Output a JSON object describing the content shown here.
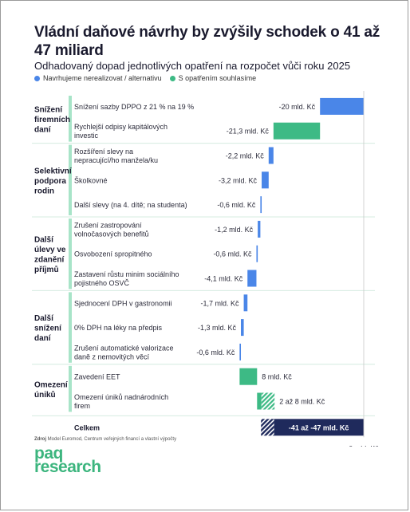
{
  "title": "Vládní daňové návrhy by zvýšily schodek o 41 až 47 miliard",
  "subtitle": "Odhadovaný dopad jednotlivých opatření na rozpočet vůči roku 2025",
  "legend": [
    {
      "label": "Navrhujeme nerealizovat / alternativu",
      "color": "#4a86e8"
    },
    {
      "label": "S opatřením souhlasíme",
      "color": "#3dba85"
    }
  ],
  "source_label": "Zdroj",
  "source_text": "Model Euromod, Centrum veřejných financí a vlastní výpočty",
  "logo_line1": "paq",
  "logo_line2": "research",
  "chart_data": {
    "type": "bar",
    "orientation": "horizontal-waterfall",
    "x_axis_label": "0 mld. Kč",
    "groups": [
      {
        "name": "Snížení firemních daní",
        "lines": [
          "Snížení",
          "firemních",
          "daní"
        ]
      },
      {
        "name": "Selektivní podpora rodin",
        "lines": [
          "Selektivní",
          "podpora",
          "rodin"
        ]
      },
      {
        "name": "Další úlevy ve zdanění příjmů",
        "lines": [
          "Další",
          "úlevy ve",
          "zdanění",
          "příjmů"
        ]
      },
      {
        "name": "Další snížení daní",
        "lines": [
          "Další",
          "snížení",
          "daní"
        ]
      },
      {
        "name": "Omezení úniků",
        "lines": [
          "Omezení",
          "úniků"
        ]
      }
    ],
    "items": [
      {
        "group": 0,
        "lines": [
          "Snížení sazby DPPO z 21 % na 19 %"
        ],
        "value": -20,
        "value_label": "-20 mld. Kč",
        "color": "blue"
      },
      {
        "group": 0,
        "lines": [
          "Rychlejší odpisy kapitálových",
          "investic"
        ],
        "value": -21.3,
        "value_label": "-21,3 mld. Kč",
        "color": "green"
      },
      {
        "group": 1,
        "lines": [
          "Rozšíření slevy na",
          "nepracující/ho manžela/ku"
        ],
        "value": -2.2,
        "value_label": "-2,2 mld. Kč",
        "color": "blue"
      },
      {
        "group": 1,
        "lines": [
          "Školkovné"
        ],
        "value": -3.2,
        "value_label": "-3,2 mld. Kč",
        "color": "blue"
      },
      {
        "group": 1,
        "lines": [
          "Další slevy (na 4. dítě; na studenta)"
        ],
        "value": -0.6,
        "value_label": "-0,6 mld. Kč",
        "color": "blue"
      },
      {
        "group": 2,
        "lines": [
          "Zrušení zastropování",
          "volnočasových benefitů"
        ],
        "value": -1.2,
        "value_label": "-1,2 mld. Kč",
        "color": "blue"
      },
      {
        "group": 2,
        "lines": [
          "Osvobození spropitného"
        ],
        "value": -0.6,
        "value_label": "-0,6 mld. Kč",
        "color": "blue"
      },
      {
        "group": 2,
        "lines": [
          "Zastavení růstu minim sociálního",
          "pojistného OSVČ"
        ],
        "value": -4.1,
        "value_label": "-4,1 mld. Kč",
        "color": "blue"
      },
      {
        "group": 3,
        "lines": [
          "Sjednocení DPH v gastronomii"
        ],
        "value": -1.7,
        "value_label": "-1,7 mld. Kč",
        "color": "blue"
      },
      {
        "group": 3,
        "lines": [
          "0% DPH na léky na předpis"
        ],
        "value": -1.3,
        "value_label": "-1,3 mld. Kč",
        "color": "blue"
      },
      {
        "group": 3,
        "lines": [
          "Zrušení automatické valorizace",
          "daně z nemovitých věcí"
        ],
        "value": -0.6,
        "value_label": "-0,6 mld. Kč",
        "color": "blue"
      },
      {
        "group": 4,
        "lines": [
          "Zavedení EET"
        ],
        "value": 8,
        "value_label": "8 mld. Kč",
        "color": "green"
      },
      {
        "group": 4,
        "lines": [
          "Omezení úniků nadnárodních",
          "firem"
        ],
        "value": 2,
        "value_high": 8,
        "value_label": "2 až 8 mld. Kč",
        "color": "green-hatched"
      }
    ],
    "total": {
      "label": "Celkem",
      "value_low": -47,
      "value_high": -41,
      "value_label": "-41 až -47 mld. Kč",
      "color": "navy-hatched"
    },
    "colors": {
      "blue": "#4a86e8",
      "green": "#3dba85",
      "navy": "#1f2a5c",
      "group_bar": "#a8e4c8",
      "group_bg": "#eaf6f0",
      "separator": "#d4ece0"
    }
  }
}
